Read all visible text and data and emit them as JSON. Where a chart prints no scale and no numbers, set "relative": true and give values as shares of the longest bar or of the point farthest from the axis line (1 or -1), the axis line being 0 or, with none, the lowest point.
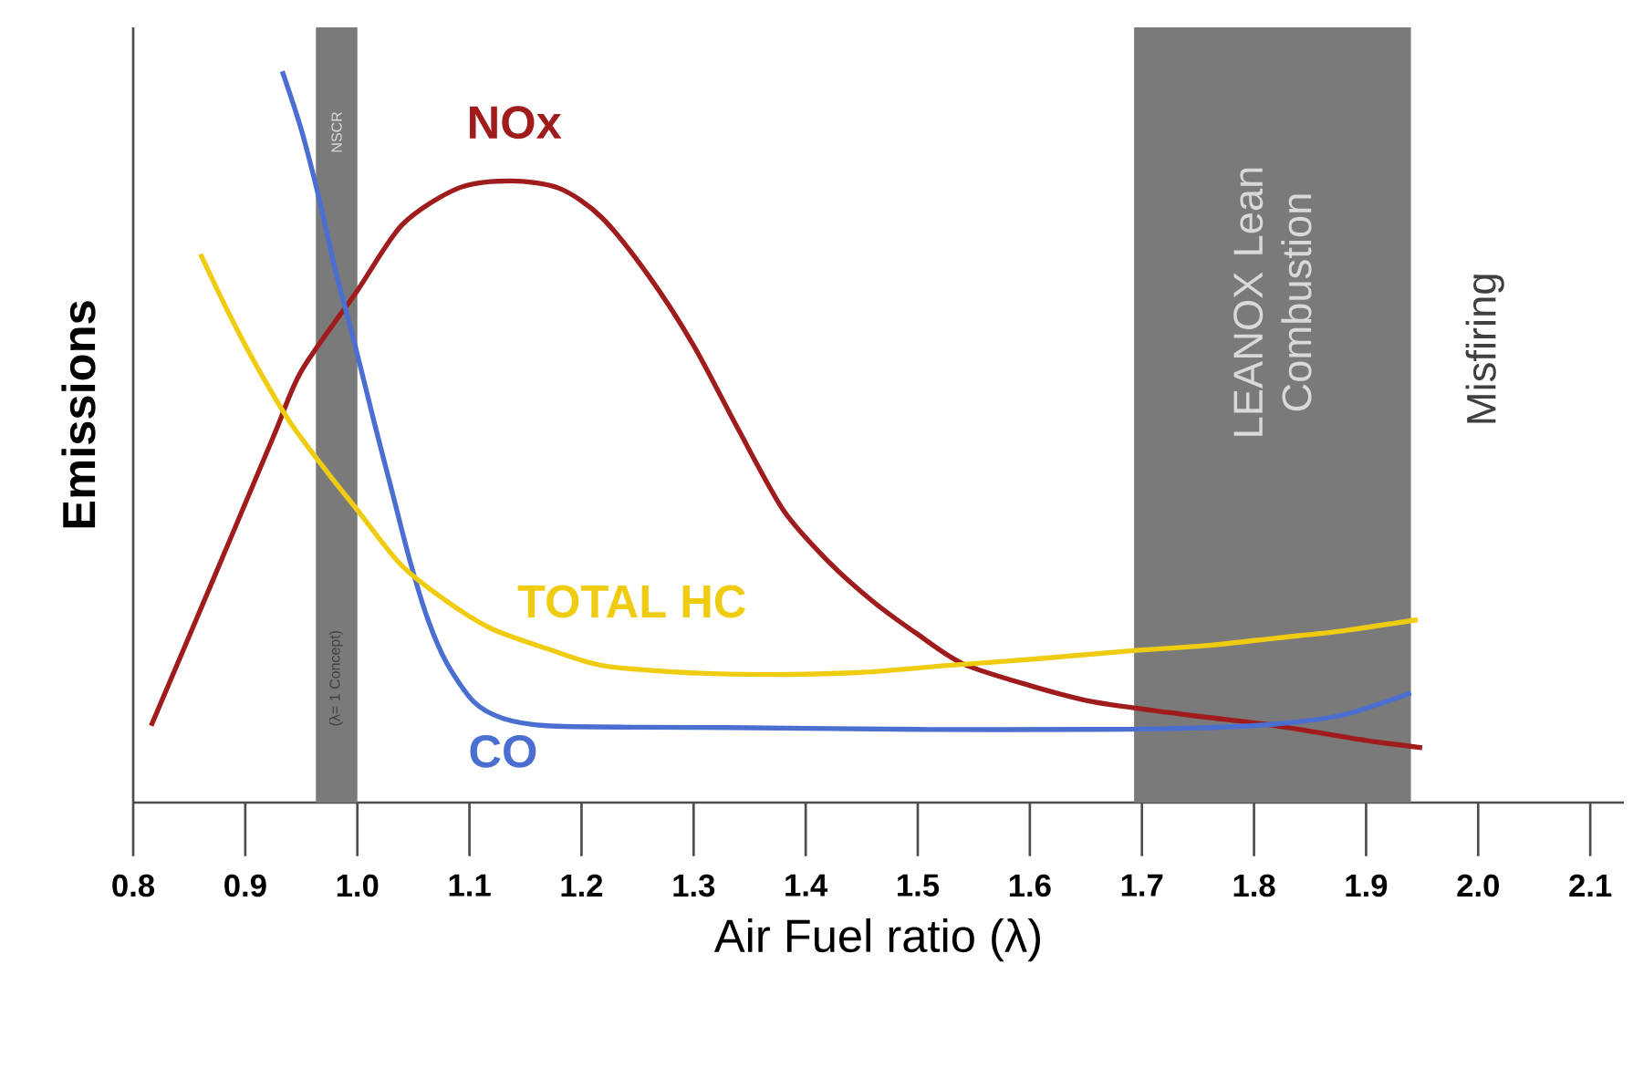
{
  "chart_data": {
    "type": "line",
    "relative": true,
    "xlabel": "Air Fuel ratio (λ)",
    "ylabel": "Emissions",
    "xlim": [
      0.8,
      2.13
    ],
    "xticks": [
      0.8,
      0.9,
      {
        "value": 1.0,
        "label": "1.0"
      },
      1.1,
      1.2,
      1.3,
      1.4,
      1.5,
      1.6,
      1.7,
      1.8,
      1.9,
      {
        "value": 2.0,
        "label": "2.0"
      },
      2.1
    ],
    "series": [
      {
        "name": "NOx",
        "color": "#a01c1c",
        "x": [
          0.816,
          0.87,
          0.925,
          0.95,
          1.0,
          1.04,
          1.09,
          1.137,
          1.18,
          1.218,
          1.26,
          1.3,
          1.34,
          1.38,
          1.42,
          1.46,
          1.5,
          1.54,
          1.6,
          1.657,
          1.74,
          1.82,
          1.9,
          1.95
        ],
        "values": [
          0.105,
          0.3,
          0.5,
          0.59,
          0.7,
          0.79,
          0.84,
          0.85,
          0.84,
          0.8,
          0.72,
          0.625,
          0.51,
          0.4,
          0.33,
          0.275,
          0.23,
          0.19,
          0.16,
          0.1375,
          0.12,
          0.105,
          0.085,
          0.075
        ]
      },
      {
        "name": "CO",
        "color": "#4a6fd0",
        "x": [
          0.933,
          0.95,
          0.966,
          0.98,
          0.998,
          1.015,
          1.031,
          1.047,
          1.063,
          1.08,
          1.104,
          1.13,
          1.169,
          1.25,
          1.33,
          1.5,
          1.657,
          1.75,
          1.82,
          1.88,
          1.94
        ],
        "values": [
          1.0,
          0.92,
          0.825,
          0.73,
          0.625,
          0.52,
          0.425,
          0.33,
          0.25,
          0.19,
          0.1375,
          0.115,
          0.105,
          0.103,
          0.1025,
          0.1,
          0.1,
          0.102,
          0.1075,
          0.12,
          0.15
        ]
      },
      {
        "name": "TOTAL HC",
        "color": "#f0cc10",
        "x": [
          0.86,
          0.885,
          0.909,
          0.94,
          0.974,
          1.0,
          1.039,
          1.08,
          1.12,
          1.17,
          1.218,
          1.29,
          1.364,
          1.45,
          1.527,
          1.61,
          1.69,
          1.76,
          1.82,
          1.88,
          1.946
        ],
        "values": [
          0.75,
          0.67,
          0.6,
          0.52,
          0.45,
          0.4,
          0.325,
          0.275,
          0.2375,
          0.21,
          0.1875,
          0.178,
          0.175,
          0.178,
          0.1875,
          0.197,
          0.2075,
          0.215,
          0.225,
          0.235,
          0.25
        ]
      }
    ],
    "bands": [
      {
        "axis": "x",
        "from": 0.963,
        "to": 1.0,
        "label": "NSCR",
        "color": "#7a7a7a"
      },
      {
        "axis": "x",
        "from": 1.693,
        "to": 1.94,
        "label": "LEANOX Lean Combustion",
        "color": "#7a7a7a"
      }
    ],
    "annotations": [
      "(λ= 1 Concept)",
      "Misfiring"
    ]
  }
}
